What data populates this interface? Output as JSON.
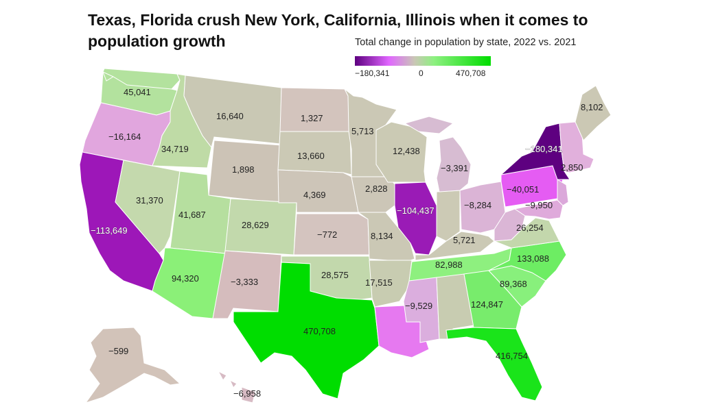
{
  "title": "Texas, Florida crush New York, California, Illinois when it comes to population growth",
  "subtitle": "Total change in population by state, 2022 vs. 2021",
  "legend": {
    "min": "−180,341",
    "mid": "0",
    "max": "470,708",
    "colors": [
      "#5e0080",
      "#e066ff",
      "#c9c7b5",
      "#8ef081",
      "#00dd00"
    ]
  },
  "states": [
    {
      "id": "WA",
      "value": "45,041",
      "color": "#b3e29e"
    },
    {
      "id": "OR",
      "value": "−16,164",
      "color": "#e1a6de"
    },
    {
      "id": "CA",
      "value": "−113,649",
      "color": "#9d17b8"
    },
    {
      "id": "ID",
      "value": "34,719",
      "color": "#bfdba6"
    },
    {
      "id": "NV",
      "value": "31,370",
      "color": "#c4d9ad"
    },
    {
      "id": "MT",
      "value": "16,640",
      "color": "#c9c8b4"
    },
    {
      "id": "WY",
      "value": "1,898",
      "color": "#ccc3b6"
    },
    {
      "id": "UT",
      "value": "41,687",
      "color": "#b6df9f"
    },
    {
      "id": "AZ",
      "value": "94,320",
      "color": "#8bf078"
    },
    {
      "id": "CO",
      "value": "28,629",
      "color": "#c2d9ac"
    },
    {
      "id": "NM",
      "value": "−3,333",
      "color": "#d5bcbd"
    },
    {
      "id": "ND",
      "value": "1,327",
      "color": "#d3c4bd"
    },
    {
      "id": "SD",
      "value": "13,660",
      "color": "#cbc9b5"
    },
    {
      "id": "NE",
      "value": "4,369",
      "color": "#cdc5b8"
    },
    {
      "id": "KS",
      "value": "−772",
      "color": "#d4c4bf"
    },
    {
      "id": "OK",
      "value": "28,575",
      "color": "#c2d8ac"
    },
    {
      "id": "TX",
      "value": "470,708",
      "color": "#00dd00"
    },
    {
      "id": "MN",
      "value": "5,713",
      "color": "#cbc8b5"
    },
    {
      "id": "IA",
      "value": "2,828",
      "color": "#ccc6b7"
    },
    {
      "id": "MO",
      "value": "8,134",
      "color": "#cbc8b5"
    },
    {
      "id": "AR",
      "value": "17,515",
      "color": "#c8ccb1"
    },
    {
      "id": "LA",
      "value": "−9,529",
      "color": "#e679f0"
    },
    {
      "id": "WI",
      "value": "12,438",
      "color": "#cbcab4"
    },
    {
      "id": "IL",
      "value": "−104,437",
      "color": "#9a1bb6"
    },
    {
      "id": "MS",
      "value": "",
      "color": "#dbaede"
    },
    {
      "id": "MI",
      "value": "−3,391",
      "color": "#d7bcd2"
    },
    {
      "id": "IN",
      "value": "",
      "color": "#cccab5"
    },
    {
      "id": "KY",
      "value": "5,721",
      "color": "#cbc9b5"
    },
    {
      "id": "TN",
      "value": "82,988",
      "color": "#8ef07f"
    },
    {
      "id": "AL",
      "value": "",
      "color": "#c8ccb1"
    },
    {
      "id": "OH",
      "value": "−8,284",
      "color": "#dbb4d6"
    },
    {
      "id": "WV",
      "value": "",
      "color": "#dbb6d6"
    },
    {
      "id": "GA",
      "value": "124,847",
      "color": "#78ec6c"
    },
    {
      "id": "FL",
      "value": "416,754",
      "color": "#1ae41a"
    },
    {
      "id": "SC",
      "value": "89,368",
      "color": "#88f07c"
    },
    {
      "id": "NC",
      "value": "133,088",
      "color": "#6ded63"
    },
    {
      "id": "VA",
      "value": "26,254",
      "color": "#c3d7ac"
    },
    {
      "id": "PA",
      "value": "−40,051",
      "color": "#e55cf3"
    },
    {
      "id": "NY",
      "value": "−180,341",
      "color": "#5e0080"
    },
    {
      "id": "MD",
      "value": "−9,950",
      "color": "#dfaadb"
    },
    {
      "id": "NJ",
      "value": "",
      "color": "#dba8da"
    },
    {
      "id": "NE-states",
      "value": "2,850",
      "color": "#e1b0dc"
    },
    {
      "id": "ME",
      "value": "8,102",
      "color": "#cbc8b4"
    },
    {
      "id": "AK",
      "value": "−599",
      "color": "#d2c3b9"
    },
    {
      "id": "HI",
      "value": "−6,958",
      "color": "#d7bbc4"
    }
  ]
}
